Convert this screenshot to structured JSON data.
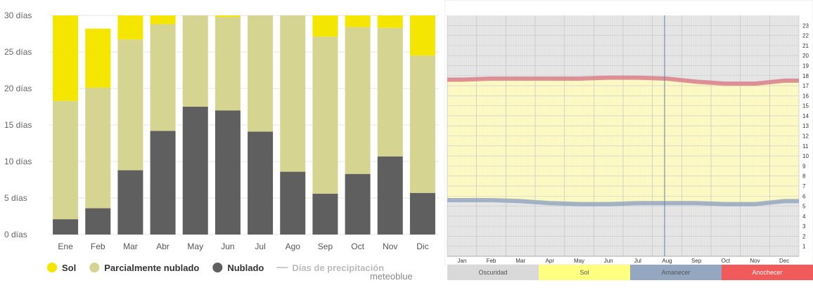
{
  "chart_data": [
    {
      "type": "bar",
      "stacked": true,
      "categories": [
        "Ene",
        "Feb",
        "Mar",
        "Abr",
        "May",
        "Jun",
        "Jul",
        "Ago",
        "Sep",
        "Oct",
        "Nov",
        "Dic"
      ],
      "ylim": [
        0,
        30
      ],
      "yticks": [
        0,
        5,
        10,
        15,
        20,
        25,
        30
      ],
      "ytick_suffix": " días",
      "grid": true,
      "legend_position": "bottom-left",
      "series": [
        {
          "name": "Nublado",
          "color": "#5f5f5f",
          "values": [
            2.1,
            3.6,
            8.8,
            14.2,
            17.5,
            17.0,
            14.1,
            8.6,
            5.6,
            8.3,
            10.7,
            5.7
          ]
        },
        {
          "name": "Parcialmente nublado",
          "color": "#d6d491",
          "values": [
            16.2,
            16.5,
            17.9,
            14.6,
            12.5,
            12.8,
            15.9,
            21.4,
            21.5,
            20.1,
            17.6,
            18.8
          ]
        },
        {
          "name": "Sol",
          "color": "#f5e600",
          "values": [
            11.7,
            8.1,
            3.3,
            1.2,
            0,
            0.2,
            0,
            0,
            2.9,
            1.6,
            1.7,
            5.5
          ]
        }
      ],
      "extra_legend": {
        "name": "Días de precipitación",
        "color": "#cccccc"
      },
      "credit": "meteoblue"
    },
    {
      "type": "area",
      "x": [
        "Jan",
        "Feb",
        "Mar",
        "Apr",
        "May",
        "Jun",
        "Jul",
        "Aug",
        "Sep",
        "Oct",
        "Nov",
        "Dec"
      ],
      "ylim": [
        0,
        24
      ],
      "yticks": [
        1,
        2,
        3,
        4,
        5,
        6,
        7,
        8,
        9,
        10,
        11,
        12,
        13,
        14,
        15,
        16,
        17,
        18,
        19,
        20,
        21,
        22,
        23
      ],
      "grid": true,
      "series": [
        {
          "name": "Amanecer",
          "color": "#94a7c1",
          "values": [
            5.6,
            5.6,
            5.5,
            5.3,
            5.2,
            5.2,
            5.3,
            5.3,
            5.3,
            5.2,
            5.2,
            5.5
          ]
        },
        {
          "name": "Anochecer",
          "color": "#d97f8a",
          "values": [
            17.6,
            17.7,
            17.7,
            17.7,
            17.7,
            17.8,
            17.8,
            17.7,
            17.4,
            17.2,
            17.2,
            17.5
          ]
        }
      ],
      "legend": [
        {
          "name": "Oscuridad",
          "color": "#d9d9d9"
        },
        {
          "name": "Sol",
          "color": "#ffff80"
        },
        {
          "name": "Amanecer",
          "color": "#94a7c1"
        },
        {
          "name": "Anochecer",
          "color": "#f05a5a"
        }
      ]
    }
  ]
}
